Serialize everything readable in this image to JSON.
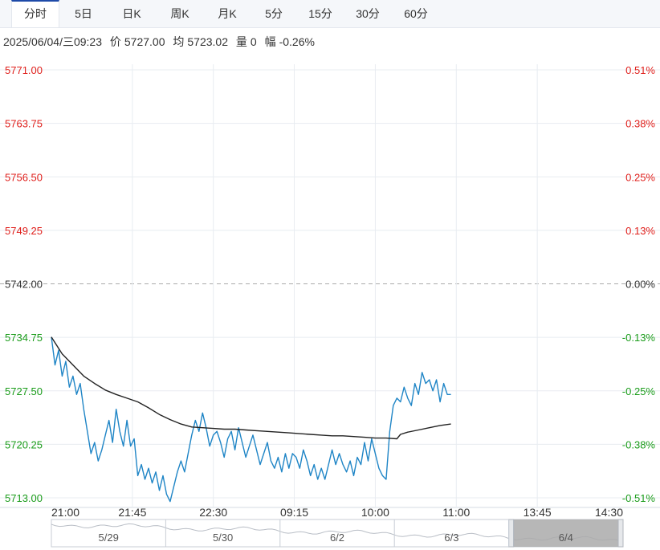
{
  "tabs": [
    {
      "label": "分时",
      "active": true
    },
    {
      "label": "5日",
      "active": false
    },
    {
      "label": "日K",
      "active": false
    },
    {
      "label": "周K",
      "active": false
    },
    {
      "label": "月K",
      "active": false
    },
    {
      "label": "5分",
      "active": false
    },
    {
      "label": "15分",
      "active": false
    },
    {
      "label": "30分",
      "active": false
    },
    {
      "label": "60分",
      "active": false
    }
  ],
  "info": {
    "datetime": "2025/06/04/三09:23",
    "price_label": "价",
    "price": "5727.00",
    "avg_label": "均",
    "avg": "5723.02",
    "vol_label": "量",
    "vol": "0",
    "chg_label": "幅",
    "chg": "-0.26%"
  },
  "colors": {
    "up": "#e0201c",
    "down": "#1a9c1a",
    "flat": "#333333",
    "price_line": "#1f85c6",
    "avg_line": "#222222",
    "grid": "#e8ecf1"
  },
  "chart_data": {
    "type": "line",
    "prev_close": 5742.0,
    "ylim": [
      5713.0,
      5771.0
    ],
    "y_ticks": [
      "5771.00",
      "5763.75",
      "5756.50",
      "5749.25",
      "5742.00",
      "5734.75",
      "5727.50",
      "5720.25",
      "5713.00"
    ],
    "pct_ticks": [
      "0.51%",
      "0.38%",
      "0.25%",
      "0.13%",
      "0.00%",
      "-0.13%",
      "-0.25%",
      "-0.38%",
      "-0.51%"
    ],
    "x_ticks": [
      "21:00",
      "21:45",
      "22:30",
      "09:15",
      "10:00",
      "11:00",
      "13:45",
      "14:30"
    ],
    "x_range": [
      0,
      315
    ],
    "series": [
      {
        "x": [
          0,
          2,
          4,
          6,
          8,
          10,
          12,
          14,
          16,
          18,
          20,
          22,
          24,
          26,
          28,
          30,
          32,
          34,
          36,
          38,
          40,
          42,
          44,
          46,
          48,
          50,
          52,
          54,
          56,
          58,
          60,
          62,
          64,
          66,
          68,
          70,
          72,
          74,
          76,
          78,
          80,
          82,
          84,
          86,
          88,
          90,
          92,
          94,
          96,
          98,
          100,
          102,
          104,
          106,
          108,
          110,
          112,
          114,
          116,
          118,
          120,
          122,
          124,
          126,
          128,
          130,
          132,
          134,
          136,
          138,
          140,
          142,
          144,
          146,
          148,
          150,
          152,
          154,
          156,
          158,
          160,
          162,
          164,
          166,
          168,
          170,
          172,
          174,
          176,
          178,
          180,
          182,
          184,
          186,
          188,
          190,
          192,
          194,
          196,
          198,
          200,
          202,
          204,
          206,
          208,
          210,
          212,
          214,
          216,
          218,
          220,
          222
        ],
        "values": [
          5734.8,
          5731.0,
          5733.0,
          5729.5,
          5731.5,
          5728.0,
          5729.5,
          5727.0,
          5728.5,
          5725.0,
          5722.0,
          5719.0,
          5720.5,
          5718.0,
          5719.5,
          5721.5,
          5723.5,
          5720.5,
          5725.0,
          5722.0,
          5720.0,
          5723.5,
          5720.0,
          5721.0,
          5716.0,
          5717.5,
          5715.5,
          5717.0,
          5715.0,
          5716.5,
          5714.0,
          5716.0,
          5713.5,
          5712.5,
          5714.5,
          5716.5,
          5718.0,
          5716.5,
          5719.0,
          5721.5,
          5723.5,
          5722.0,
          5724.5,
          5722.5,
          5720.0,
          5721.5,
          5722.0,
          5720.5,
          5718.5,
          5721.0,
          5722.0,
          5719.5,
          5722.5,
          5720.5,
          5718.5,
          5720.0,
          5721.5,
          5719.5,
          5717.5,
          5719.0,
          5720.5,
          5718.0,
          5717.0,
          5718.5,
          5716.5,
          5719.0,
          5717.0,
          5719.0,
          5718.5,
          5717.0,
          5719.5,
          5718.0,
          5716.0,
          5717.5,
          5715.5,
          5717.0,
          5715.5,
          5717.5,
          5719.5,
          5717.5,
          5719.0,
          5717.5,
          5716.5,
          5718.0,
          5716.0,
          5718.5,
          5717.5,
          5720.5,
          5718.0,
          5721.0,
          5719.0,
          5717.0,
          5716.0,
          5715.5,
          5722.0,
          5725.5,
          5726.5,
          5726.0,
          5728.0,
          5726.5,
          5725.5,
          5728.5,
          5727.0,
          5730.0,
          5728.5,
          5729.0,
          5727.5,
          5729.0,
          5726.0,
          5728.5,
          5727.0,
          5727.0
        ]
      },
      {
        "x": [
          0,
          6,
          12,
          18,
          24,
          30,
          36,
          42,
          48,
          54,
          60,
          66,
          72,
          78,
          84,
          90,
          96,
          102,
          108,
          114,
          120,
          126,
          132,
          138,
          144,
          150,
          156,
          162,
          168,
          174,
          180,
          186,
          192,
          194,
          198,
          204,
          210,
          216,
          222
        ],
        "values": [
          5734.8,
          5732.5,
          5731.0,
          5729.5,
          5728.5,
          5727.6,
          5727.0,
          5726.5,
          5726.0,
          5725.2,
          5724.3,
          5723.6,
          5723.0,
          5722.6,
          5722.5,
          5722.4,
          5722.3,
          5722.3,
          5722.2,
          5722.1,
          5722.0,
          5721.9,
          5721.8,
          5721.7,
          5721.6,
          5721.5,
          5721.4,
          5721.4,
          5721.3,
          5721.2,
          5721.1,
          5721.1,
          5721.0,
          5721.6,
          5721.9,
          5722.2,
          5722.5,
          5722.8,
          5723.0
        ]
      }
    ]
  },
  "navigator": {
    "days": [
      "5/29",
      "5/30",
      "6/2",
      "6/3",
      "6/4"
    ],
    "selected": 4
  }
}
